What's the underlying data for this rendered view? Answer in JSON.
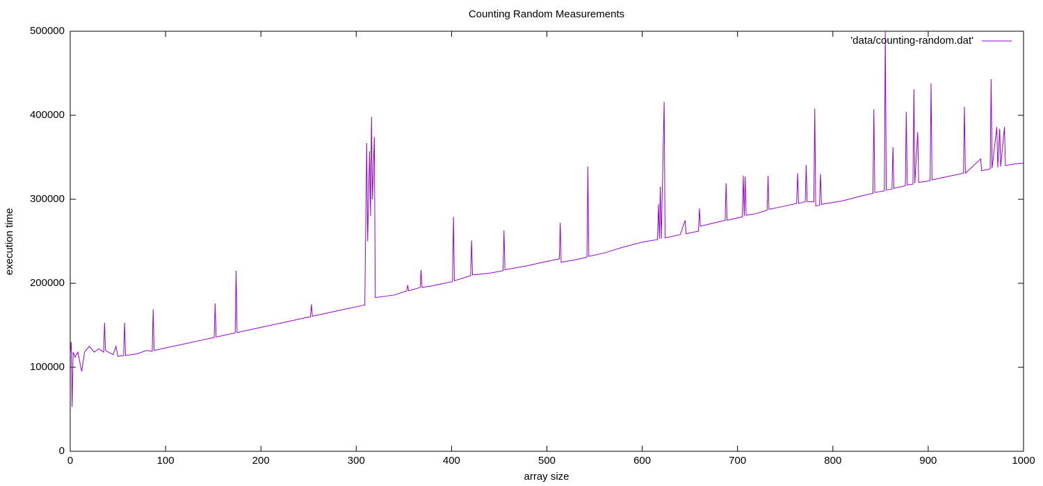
{
  "chart_data": {
    "type": "line",
    "title": "Counting Random Measurements",
    "x_label": "array size",
    "y_label": "execution time",
    "xlim": [
      0,
      1000
    ],
    "xticks": [
      0,
      100,
      200,
      300,
      400,
      500,
      600,
      700,
      800,
      900,
      1000
    ],
    "ylim": [
      0,
      500000
    ],
    "yticks": [
      0,
      100000,
      200000,
      300000,
      400000,
      500000
    ],
    "legend": "top-right",
    "series": [
      {
        "name": "'data/counting-random.dat'",
        "color": "#9400d3",
        "x": [
          0,
          1,
          2,
          3,
          5,
          8,
          12,
          15,
          20,
          25,
          30,
          35,
          36,
          37,
          45,
          48,
          50,
          56,
          57,
          58,
          70,
          80,
          86,
          87,
          88,
          100,
          120,
          140,
          151,
          152,
          153,
          160,
          173,
          174,
          175,
          180,
          200,
          220,
          240,
          252,
          253,
          254,
          270,
          290,
          305,
          309,
          311,
          312,
          314,
          315,
          316,
          317,
          319,
          320,
          340,
          353,
          354,
          355,
          367,
          368,
          369,
          380,
          401,
          402,
          403,
          420,
          421,
          422,
          440,
          454,
          455,
          456,
          480,
          500,
          513,
          514,
          515,
          530,
          542,
          543,
          544,
          560,
          580,
          600,
          616,
          617,
          618,
          619,
          620,
          623,
          624,
          640,
          645,
          646,
          659,
          660,
          661,
          680,
          687,
          688,
          689,
          705,
          706,
          707,
          708,
          709,
          720,
          731,
          732,
          733,
          750,
          762,
          763,
          764,
          771,
          772,
          773,
          780,
          781,
          782,
          786,
          787,
          788,
          810,
          830,
          842,
          843,
          844,
          854,
          855,
          856,
          862,
          863,
          864,
          876,
          877,
          878,
          884,
          885,
          886,
          889,
          890,
          902,
          903,
          904,
          920,
          937,
          938,
          939,
          955,
          956,
          965,
          966,
          967,
          972,
          973,
          975,
          976,
          980,
          981,
          990,
          1000
        ],
        "values": [
          115000,
          130000,
          53000,
          118000,
          112000,
          118000,
          95000,
          118000,
          125000,
          118000,
          122000,
          118000,
          153000,
          120000,
          115000,
          125000,
          113000,
          114000,
          153000,
          114000,
          116000,
          120000,
          119000,
          169000,
          120000,
          123000,
          127900,
          132800,
          135500,
          176000,
          136000,
          137700,
          140900,
          215000,
          141400,
          142600,
          147500,
          152400,
          157300,
          160200,
          175000,
          160700,
          164700,
          169600,
          173200,
          174200,
          367000,
          250000,
          357000,
          280000,
          398000,
          300000,
          374000,
          183000,
          186000,
          191000,
          198000,
          191000,
          195000,
          216000,
          195000,
          197000,
          202000,
          279000,
          203000,
          209000,
          251000,
          210000,
          212000,
          215000,
          263000,
          216000,
          221000,
          226000,
          229000,
          272000,
          225000,
          228000,
          231000,
          339000,
          232000,
          236000,
          243000,
          249000,
          252000,
          294000,
          253000,
          315000,
          253000,
          416000,
          254000,
          258000,
          275000,
          259000,
          262000,
          289000,
          268000,
          273000,
          275000,
          319000,
          275000,
          279000,
          328000,
          280000,
          327000,
          281000,
          283000,
          287000,
          328000,
          288000,
          292000,
          295000,
          331000,
          295000,
          297000,
          341000,
          297000,
          297000,
          408000,
          292000,
          293000,
          330000,
          294000,
          298000,
          304000,
          307000,
          407000,
          308000,
          310000,
          500000,
          311000,
          312000,
          362000,
          313000,
          316000,
          404000,
          317000,
          318000,
          431000,
          319000,
          380000,
          320000,
          322000,
          438000,
          323000,
          327000,
          331000,
          410000,
          331000,
          348000,
          334000,
          336000,
          443000,
          337000,
          386000,
          338000,
          384000,
          339000,
          386000,
          340000,
          342000,
          343000
        ]
      }
    ]
  }
}
